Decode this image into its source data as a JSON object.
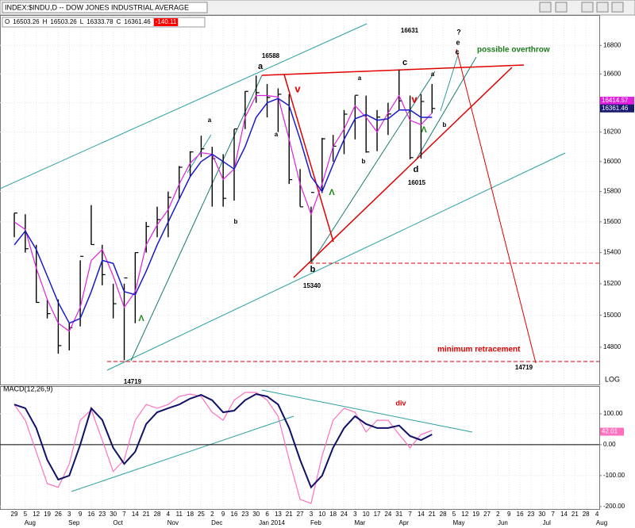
{
  "chart_data": [
    {
      "type": "ohlc",
      "title": "INDEX:$INDU,D -- DOW JONES INDUSTRIAL AVERAGE",
      "readout": [
        {
          "label": "O",
          "value": 16503.26
        },
        {
          "label": "H",
          "value": 16503.26
        },
        {
          "label": "L",
          "value": 16333.78
        },
        {
          "label": "C",
          "value": 16361.46
        }
      ],
      "change": -140.11,
      "categories": [
        "29",
        "5",
        "12",
        "19",
        "26",
        "3",
        "9",
        "16",
        "23",
        "30",
        "7",
        "14",
        "21",
        "28",
        "4",
        "11",
        "18",
        "25",
        "2",
        "9",
        "16",
        "23",
        "30",
        "6",
        "13",
        "21",
        "27",
        "3",
        "10",
        "18",
        "24",
        "3",
        "10",
        "17",
        "24",
        "31",
        "7",
        "14",
        "21",
        "28",
        "5",
        "12",
        "19",
        "27",
        "2",
        "9",
        "16",
        "23",
        "30",
        "7",
        "14",
        "21",
        "28",
        "4"
      ],
      "month_labels": [
        null,
        "Aug",
        null,
        null,
        null,
        "Sep",
        null,
        null,
        null,
        "Oct",
        null,
        null,
        null,
        null,
        "Nov",
        null,
        null,
        null,
        "Dec",
        null,
        null,
        null,
        null,
        "Jan 2014",
        null,
        null,
        null,
        "Feb",
        null,
        null,
        null,
        "Mar",
        null,
        null,
        null,
        "Apr",
        null,
        null,
        null,
        null,
        "May",
        null,
        null,
        null,
        "Jun",
        null,
        null,
        null,
        "Jul",
        null,
        null,
        null,
        null,
        "Aug"
      ],
      "high": [
        15658,
        15650,
        15450,
        15100,
        15100,
        14950,
        15350,
        15710,
        15450,
        15200,
        15200,
        15400,
        15600,
        15700,
        15800,
        15970,
        16070,
        16175,
        16100,
        16050,
        16220,
        16480,
        16588,
        16530,
        16500,
        16460,
        15950,
        15700,
        16160,
        16180,
        16350,
        16450,
        16450,
        16350,
        16400,
        16631,
        16450,
        16460,
        16530,
        null,
        null,
        null,
        null,
        null,
        null,
        null,
        null,
        null,
        null,
        null,
        null,
        null,
        null,
        null
      ],
      "low": [
        15500,
        15400,
        15080,
        14980,
        14760,
        14780,
        14930,
        15450,
        15190,
        14980,
        14719,
        14950,
        15400,
        15500,
        15500,
        15750,
        15900,
        16030,
        15700,
        15700,
        15740,
        16220,
        16400,
        16300,
        16200,
        15850,
        15700,
        15340,
        15790,
        16000,
        16050,
        16150,
        16060,
        16070,
        16180,
        16350,
        16015,
        16020,
        16330,
        null,
        null,
        null,
        null,
        null,
        null,
        null,
        null,
        null,
        null,
        null,
        null,
        null,
        null,
        null
      ],
      "close": [
        15658,
        15425,
        15081,
        15010,
        14810,
        14922,
        15376,
        15452,
        15258,
        15073,
        15237,
        15400,
        15570,
        15615,
        15761,
        15962,
        16065,
        16086,
        16020,
        15755,
        16221,
        16479,
        16470,
        16437,
        16459,
        15879,
        15699,
        15794,
        16154,
        16104,
        16322,
        16452,
        16065,
        16302,
        16323,
        16413,
        16027,
        16409,
        16361,
        null,
        null,
        null,
        null,
        null,
        null,
        null,
        null,
        null,
        null,
        null,
        null,
        null,
        null,
        null
      ],
      "bar_color": "#000000",
      "series": [
        {
          "color": "#e020e0",
          "values": [
            15600,
            15550,
            15300,
            15100,
            14950,
            14900,
            15050,
            15350,
            15420,
            15250,
            15050,
            15150,
            15450,
            15580,
            15680,
            15850,
            15990,
            16060,
            16050,
            15880,
            15950,
            16300,
            16450,
            16450,
            16440,
            16150,
            15850,
            15650,
            15850,
            16100,
            16220,
            16380,
            16300,
            16200,
            16330,
            16450,
            16280,
            16250,
            16330,
            null,
            null,
            null,
            null,
            null,
            null,
            null,
            null,
            null,
            null,
            null,
            null,
            null,
            null,
            null
          ]
        },
        {
          "color": "#1a1acc",
          "values": [
            15450,
            15540,
            15420,
            15250,
            15080,
            14950,
            14980,
            15150,
            15350,
            15330,
            15150,
            15130,
            15280,
            15450,
            15600,
            15750,
            15900,
            16000,
            16050,
            16000,
            15950,
            16100,
            16300,
            16400,
            16430,
            16380,
            16150,
            15900,
            15800,
            15980,
            16150,
            16290,
            16320,
            16280,
            16290,
            16350,
            16350,
            16300,
            16300,
            null,
            null,
            null,
            null,
            null,
            null,
            null,
            null,
            null,
            null,
            null,
            null,
            null,
            null,
            null
          ]
        }
      ],
      "ylim": [
        14570,
        17010
      ],
      "yticks": [
        14800,
        15000,
        15200,
        15400,
        15600,
        15800,
        16000,
        16200,
        16400,
        16600,
        16800
      ],
      "log_scale": true,
      "grid": true,
      "scale_label": "LOG",
      "price_tags": [
        {
          "value": 16414.57,
          "color": "#e020e0"
        },
        {
          "value": 16361.46,
          "color": "#1a1a70"
        }
      ],
      "annotations": [
        "16588",
        "a",
        "16631",
        "c",
        "16015",
        "d",
        "15340",
        "b",
        "14719",
        "?",
        "e",
        "c",
        "possible overthrow",
        "minimum retracement",
        "14719",
        "v",
        "v",
        "Λ",
        "Λ",
        "Λ",
        "a",
        "a",
        "a",
        "a",
        "b",
        "b",
        "b"
      ]
    },
    {
      "type": "macd",
      "title": "MACD(12,26,9)",
      "series": [
        {
          "color": "#ff70c0",
          "values": [
            130,
            79,
            -23,
            -126,
            -138,
            -62,
            79,
            113,
            15,
            -87,
            -49,
            79,
            130,
            118,
            130,
            156,
            164,
            156,
            105,
            79,
            144,
            169,
            169,
            144,
            92,
            -49,
            -177,
            -190,
            -36,
            79,
            118,
            105,
            41,
            79,
            79,
            33,
            -10,
            33,
            46,
            null,
            null,
            null,
            null,
            null,
            null,
            null,
            null,
            null,
            null,
            null,
            null,
            null,
            null,
            null
          ]
        },
        {
          "color": "#10106a",
          "values": [
            130,
            118,
            54,
            -49,
            -113,
            -100,
            0,
            118,
            80,
            -10,
            -62,
            -23,
            67,
            105,
            118,
            130,
            149,
            161,
            144,
            105,
            110,
            144,
            164,
            156,
            130,
            54,
            -49,
            -138,
            -100,
            -10,
            54,
            92,
            67,
            54,
            54,
            62,
            28,
            15,
            33,
            null,
            null,
            null,
            null,
            null,
            null,
            null,
            null,
            null,
            null,
            null,
            null,
            null,
            null,
            null
          ]
        }
      ],
      "ylim": [
        -208,
        187
      ],
      "yticks": [
        {
          "value": 100,
          "label": "100.00"
        },
        {
          "value": 0,
          "label": "0.00"
        },
        {
          "value": -100,
          "label": "-100.00"
        },
        {
          "value": -200,
          "label": "-200.00"
        }
      ],
      "zero_line": true,
      "last_label": {
        "value": 42.01,
        "label": "42.01",
        "color": "#ff70c0"
      },
      "annotations": [
        "div"
      ]
    }
  ]
}
